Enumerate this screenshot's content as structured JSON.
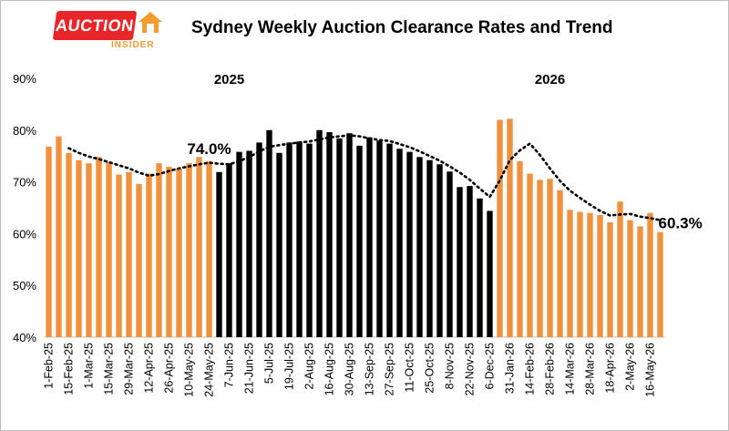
{
  "logo": {
    "main": "AUCTION",
    "sub": "INSIDER"
  },
  "chart_data": {
    "type": "bar",
    "title": "Sydney Weekly Auction Clearance Rates and Trend",
    "xlabel": "",
    "ylabel": "",
    "ylim": [
      40,
      90
    ],
    "y_ticks": [
      "40%",
      "50%",
      "60%",
      "70%",
      "80%",
      "90%"
    ],
    "grid": false,
    "legend": "none",
    "year_labels": [
      {
        "text": "2025",
        "at": "7-Jun-25"
      },
      {
        "text": "2026",
        "at": "28-Feb-26"
      }
    ],
    "categories": [
      "1-Feb-25",
      "8-Feb-25",
      "15-Feb-25",
      "22-Feb-25",
      "1-Mar-25",
      "8-Mar-25",
      "15-Mar-25",
      "22-Mar-25",
      "29-Mar-25",
      "5-Apr-25",
      "12-Apr-25",
      "19-Apr-25",
      "26-Apr-25",
      "3-May-25",
      "10-May-25",
      "17-May-25",
      "24-May-25",
      "31-May-25",
      "7-Jun-25",
      "14-Jun-25",
      "21-Jun-25",
      "28-Jun-25",
      "5-Jul-25",
      "12-Jul-25",
      "19-Jul-25",
      "26-Jul-25",
      "2-Aug-25",
      "9-Aug-25",
      "16-Aug-25",
      "23-Aug-25",
      "30-Aug-25",
      "6-Sep-25",
      "13-Sep-25",
      "20-Sep-25",
      "27-Sep-25",
      "4-Oct-25",
      "11-Oct-25",
      "18-Oct-25",
      "25-Oct-25",
      "1-Nov-25",
      "8-Nov-25",
      "15-Nov-25",
      "22-Nov-25",
      "29-Nov-25",
      "6-Dec-25",
      "24-Jan-26",
      "31-Jan-26",
      "7-Feb-26",
      "14-Feb-26",
      "21-Feb-26",
      "28-Feb-26",
      "7-Mar-26",
      "14-Mar-26",
      "21-Mar-26",
      "28-Mar-26",
      "4-Apr-26",
      "18-Apr-26",
      "25-Apr-26",
      "2-May-26",
      "9-May-26",
      "16-May-26",
      "23-May-26"
    ],
    "tick_labels": [
      "1-Feb-25",
      "15-Feb-25",
      "1-Mar-25",
      "15-Mar-25",
      "29-Mar-25",
      "12-Apr-25",
      "26-Apr-25",
      "10-May-25",
      "24-May-25",
      "7-Jun-25",
      "21-Jun-25",
      "5-Jul-25",
      "19-Jul-25",
      "2-Aug-25",
      "16-Aug-25",
      "30-Aug-25",
      "13-Sep-25",
      "27-Sep-25",
      "11-Oct-25",
      "25-Oct-25",
      "8-Nov-25",
      "22-Nov-25",
      "6-Dec-25",
      "31-Jan-26",
      "14-Feb-26",
      "28-Feb-26",
      "14-Mar-26",
      "28-Mar-26",
      "18-Apr-26",
      "2-May-26",
      "16-May-26"
    ],
    "values": [
      76.8,
      78.8,
      75.6,
      74.2,
      73.6,
      74.8,
      73.8,
      71.4,
      71.9,
      69.6,
      71.6,
      73.6,
      72.9,
      72.6,
      73.6,
      74.8,
      74.0,
      71.9,
      73.6,
      75.8,
      76.0,
      77.6,
      80.0,
      75.6,
      77.6,
      77.8,
      77.4,
      80.0,
      79.6,
      78.4,
      79.4,
      77.0,
      78.6,
      78.0,
      77.4,
      76.4,
      75.8,
      74.8,
      74.2,
      73.4,
      72.0,
      69.0,
      69.2,
      66.8,
      64.4,
      82.0,
      82.2,
      74.0,
      71.6,
      70.4,
      70.6,
      68.4,
      64.6,
      64.2,
      64.0,
      63.6,
      62.2,
      66.2,
      62.6,
      61.4,
      64.0,
      60.3
    ],
    "bar_colors": [
      "#f0913e",
      "#f0913e",
      "#f0913e",
      "#f0913e",
      "#f0913e",
      "#f0913e",
      "#f0913e",
      "#f0913e",
      "#f0913e",
      "#f0913e",
      "#f0913e",
      "#f0913e",
      "#f0913e",
      "#f0913e",
      "#f0913e",
      "#f0913e",
      "#f0913e",
      "#000000",
      "#000000",
      "#000000",
      "#000000",
      "#000000",
      "#000000",
      "#000000",
      "#000000",
      "#000000",
      "#000000",
      "#000000",
      "#000000",
      "#000000",
      "#000000",
      "#000000",
      "#000000",
      "#000000",
      "#000000",
      "#000000",
      "#000000",
      "#000000",
      "#000000",
      "#000000",
      "#000000",
      "#000000",
      "#000000",
      "#000000",
      "#000000",
      "#f0913e",
      "#f0913e",
      "#f0913e",
      "#f0913e",
      "#f0913e",
      "#f0913e",
      "#f0913e",
      "#f0913e",
      "#f0913e",
      "#f0913e",
      "#f0913e",
      "#f0913e",
      "#f0913e",
      "#f0913e",
      "#f0913e",
      "#f0913e",
      "#f0913e"
    ],
    "trend": [
      null,
      null,
      76.5,
      75.6,
      74.9,
      74.4,
      73.8,
      73.2,
      72.6,
      71.8,
      71.2,
      71.5,
      72.1,
      72.6,
      73.0,
      73.4,
      73.7,
      73.5,
      73.4,
      74.0,
      74.8,
      75.9,
      76.8,
      77.1,
      77.4,
      77.6,
      77.8,
      78.2,
      78.6,
      78.8,
      79.0,
      78.8,
      78.4,
      78.1,
      77.9,
      77.3,
      76.7,
      75.9,
      75.0,
      74.1,
      73.0,
      71.8,
      70.4,
      68.7,
      67.1,
      70.3,
      74.2,
      76.1,
      77.4,
      75.2,
      72.6,
      70.2,
      68.3,
      66.9,
      65.6,
      64.4,
      63.5,
      63.7,
      63.8,
      63.3,
      63.0,
      62.6
    ],
    "annotations": [
      {
        "text": "74.0%",
        "at": "24-May-25",
        "value": 74.0
      },
      {
        "text": "60.3%",
        "at": "23-May-26",
        "value": 60.3
      }
    ],
    "colors": {
      "bar_2025_h1": "#f0913e",
      "bar_2025_h2": "#000000",
      "bar_2026": "#f0913e",
      "trend": "#000000"
    }
  }
}
